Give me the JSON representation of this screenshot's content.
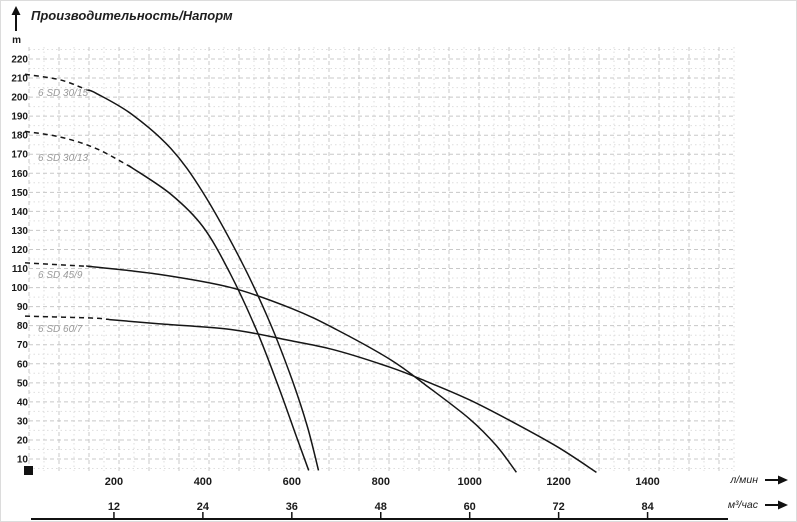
{
  "header": {
    "title": "Производительность/Напорм"
  },
  "y_axis": {
    "unit_label": "m",
    "ticks": [
      220,
      210,
      200,
      190,
      180,
      170,
      160,
      150,
      140,
      130,
      120,
      110,
      100,
      90,
      80,
      70,
      60,
      50,
      40,
      30,
      20,
      10
    ]
  },
  "x_axis": {
    "primary": {
      "unit_label": "л/мин",
      "ticks": [
        200,
        400,
        600,
        800,
        1000,
        1200,
        1400
      ]
    },
    "secondary": {
      "unit_label": "м³/час",
      "ticks": [
        12,
        24,
        36,
        48,
        60,
        72,
        84
      ]
    }
  },
  "colors": {
    "curve": "#161616",
    "grid_major": "#c8c8c8",
    "grid_minor": "#dedede",
    "axis": "#111111",
    "curve_label": "#9a9a9a",
    "text": "#1a1a1a"
  },
  "chart_data": {
    "type": "line",
    "title": "Производительность/Напорм",
    "xlabel": "л/мин",
    "xlabel_secondary": "м³/час",
    "ylabel": "m",
    "xlim": [
      0,
      1580
    ],
    "ylim": [
      0,
      225
    ],
    "grid": true,
    "legend_position": "inline-left",
    "x_ticks_lmin": [
      200,
      400,
      600,
      800,
      1000,
      1200,
      1400
    ],
    "x_ticks_m3h": [
      12,
      24,
      36,
      48,
      60,
      72,
      84
    ],
    "y_ticks": [
      220,
      210,
      200,
      190,
      180,
      170,
      160,
      150,
      140,
      130,
      120,
      110,
      100,
      90,
      80,
      70,
      60,
      50,
      40,
      30,
      20,
      10
    ],
    "series": [
      {
        "name": "6 SD 30/15",
        "dash_until": 140,
        "points": [
          [
            0,
            212
          ],
          [
            80,
            209
          ],
          [
            160,
            202
          ],
          [
            240,
            191
          ],
          [
            328,
            173
          ],
          [
            400,
            150
          ],
          [
            486,
            114
          ],
          [
            550,
            82
          ],
          [
            600,
            52
          ],
          [
            635,
            27
          ],
          [
            660,
            4
          ]
        ]
      },
      {
        "name": "6 SD 30/13",
        "dash_until": 240,
        "points": [
          [
            0,
            182
          ],
          [
            80,
            179
          ],
          [
            160,
            173
          ],
          [
            240,
            163
          ],
          [
            328,
            149
          ],
          [
            400,
            132
          ],
          [
            460,
            108
          ],
          [
            520,
            78
          ],
          [
            570,
            48
          ],
          [
            610,
            22
          ],
          [
            638,
            4
          ]
        ]
      },
      {
        "name": "6 SD 45/9",
        "dash_until": 150,
        "points": [
          [
            0,
            113
          ],
          [
            150,
            111
          ],
          [
            300,
            107
          ],
          [
            463,
            100
          ],
          [
            600,
            89
          ],
          [
            700,
            78
          ],
          [
            823,
            62
          ],
          [
            900,
            49
          ],
          [
            1000,
            31
          ],
          [
            1060,
            17
          ],
          [
            1105,
            3
          ]
        ]
      },
      {
        "name": "6 SD 60/7",
        "dash_until": 190,
        "points": [
          [
            0,
            85
          ],
          [
            150,
            84
          ],
          [
            300,
            81
          ],
          [
            463,
            78
          ],
          [
            600,
            72
          ],
          [
            700,
            67
          ],
          [
            823,
            58
          ],
          [
            900,
            51
          ],
          [
            1000,
            41
          ],
          [
            1100,
            29
          ],
          [
            1200,
            16
          ],
          [
            1285,
            3
          ]
        ]
      }
    ]
  }
}
